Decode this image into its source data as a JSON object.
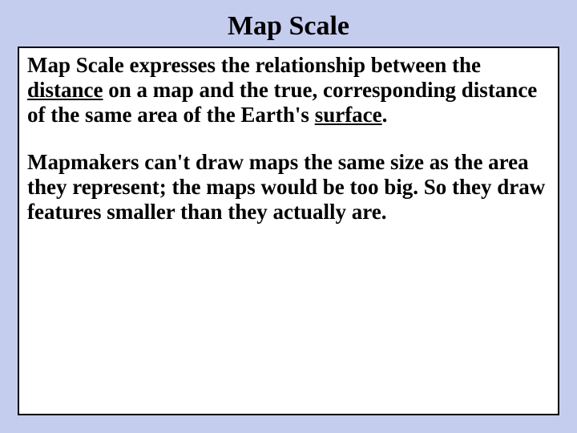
{
  "slide": {
    "background_color": "#c5cdef",
    "title": {
      "text": "Map Scale",
      "fontsize": 34,
      "color": "#000000",
      "font_weight": "bold"
    },
    "content_box": {
      "background_color": "#ffffff",
      "border_color": "#000000",
      "border_width": 2,
      "text_color": "#000000",
      "fontsize": 27,
      "font_weight": "bold",
      "paragraphs": [
        {
          "segments": [
            {
              "text": "Map Scale expresses the relationship between the ",
              "underline": false
            },
            {
              "text": "distance",
              "underline": true
            },
            {
              "text": " on a map and the true, corresponding distance of the same area of the Earth's ",
              "underline": false
            },
            {
              "text": "surface",
              "underline": true
            },
            {
              "text": ".",
              "underline": false
            }
          ]
        },
        {
          "segments": [
            {
              "text": "Mapmakers can't draw maps the same size as the area they represent; the maps would be too big. So they draw features smaller than they actually are.",
              "underline": false
            }
          ]
        }
      ]
    }
  }
}
